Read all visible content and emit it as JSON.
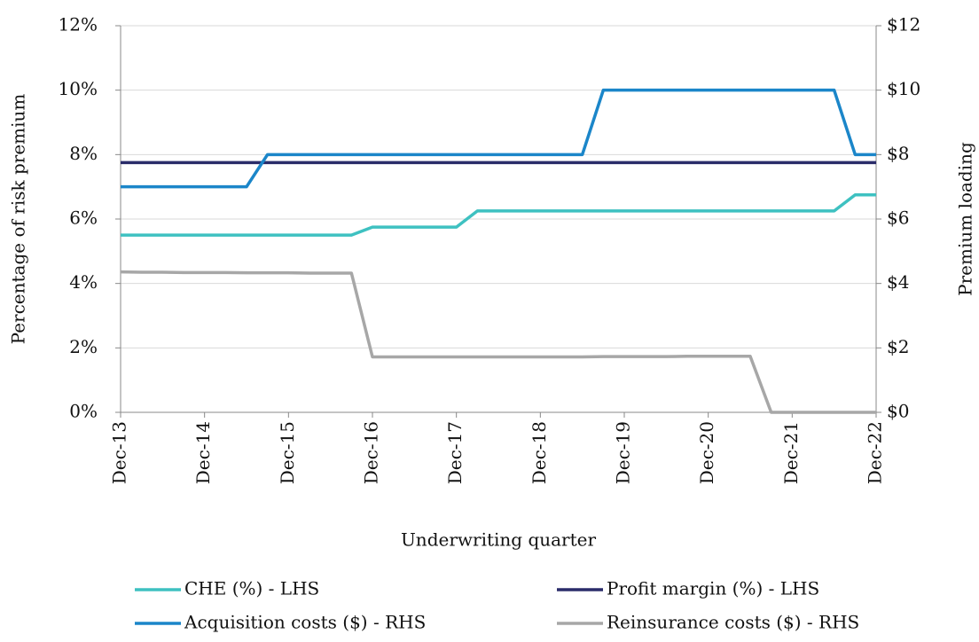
{
  "chart_data": {
    "type": "line",
    "x_label": "Underwriting quarter",
    "y_label": "Percentage of risk premium",
    "y2_label": "Premium loading",
    "categories": [
      "Dec-13",
      null,
      null,
      null,
      "Dec-14",
      null,
      null,
      null,
      "Dec-15",
      null,
      null,
      null,
      "Dec-16",
      null,
      null,
      null,
      "Dec-17",
      null,
      null,
      null,
      "Dec-18",
      null,
      null,
      null,
      "Dec-19",
      null,
      null,
      null,
      "Dec-20",
      null,
      null,
      null,
      "Dec-21",
      null,
      null,
      null,
      "Dec-22"
    ],
    "ylim": [
      0,
      12
    ],
    "yticks": [
      {
        "value": 0,
        "label": "0%"
      },
      {
        "value": 2,
        "label": "2%"
      },
      {
        "value": 4,
        "label": "4%"
      },
      {
        "value": 6,
        "label": "6%"
      },
      {
        "value": 8,
        "label": "8%"
      },
      {
        "value": 10,
        "label": "10%"
      },
      {
        "value": 12,
        "label": "12%"
      }
    ],
    "y2lim": [
      0,
      12
    ],
    "y2ticks": [
      {
        "value": 0,
        "label": "$0"
      },
      {
        "value": 2,
        "label": "$2"
      },
      {
        "value": 4,
        "label": "$4"
      },
      {
        "value": 6,
        "label": "$6"
      },
      {
        "value": 8,
        "label": "$8"
      },
      {
        "value": 10,
        "label": "$10"
      },
      {
        "value": 12,
        "label": "$12"
      }
    ],
    "grid": true,
    "series": [
      {
        "name": "CHE (%) - LHS",
        "color": "#3ec1c1",
        "axis": "y",
        "values": [
          5.5,
          5.5,
          5.5,
          5.5,
          5.5,
          5.5,
          5.5,
          5.5,
          5.5,
          5.5,
          5.5,
          5.5,
          5.75,
          5.75,
          5.75,
          5.75,
          5.75,
          6.25,
          6.25,
          6.25,
          6.25,
          6.25,
          6.25,
          6.25,
          6.25,
          6.25,
          6.25,
          6.25,
          6.25,
          6.25,
          6.25,
          6.25,
          6.25,
          6.25,
          6.25,
          6.75,
          6.75
        ]
      },
      {
        "name": "Profit margin (%) - LHS",
        "color": "#2a2c6a",
        "axis": "y",
        "values": [
          7.75,
          7.75,
          7.75,
          7.75,
          7.75,
          7.75,
          7.75,
          7.75,
          7.75,
          7.75,
          7.75,
          7.75,
          7.75,
          7.75,
          7.75,
          7.75,
          7.75,
          7.75,
          7.75,
          7.75,
          7.75,
          7.75,
          7.75,
          7.75,
          7.75,
          7.75,
          7.75,
          7.75,
          7.75,
          7.75,
          7.75,
          7.75,
          7.75,
          7.75,
          7.75,
          7.75,
          7.75
        ]
      },
      {
        "name": "Acquisition costs ($) - RHS",
        "color": "#1b86c9",
        "axis": "y2",
        "values": [
          7,
          7,
          7,
          7,
          7,
          7,
          7,
          8,
          8,
          8,
          8,
          8,
          8,
          8,
          8,
          8,
          8,
          8,
          8,
          8,
          8,
          8,
          8,
          10,
          10,
          10,
          10,
          10,
          10,
          10,
          10,
          10,
          10,
          10,
          10,
          8,
          8
        ]
      },
      {
        "name": "Reinsurance costs ($) - RHS",
        "color": "#a7a7a7",
        "axis": "y2",
        "values": [
          4.36,
          4.35,
          4.35,
          4.34,
          4.34,
          4.34,
          4.33,
          4.33,
          4.33,
          4.32,
          4.32,
          4.32,
          1.72,
          1.72,
          1.72,
          1.72,
          1.72,
          1.72,
          1.72,
          1.72,
          1.72,
          1.72,
          1.72,
          1.73,
          1.73,
          1.73,
          1.73,
          1.74,
          1.74,
          1.74,
          1.74,
          0,
          0,
          0,
          0,
          0,
          0
        ]
      }
    ]
  }
}
